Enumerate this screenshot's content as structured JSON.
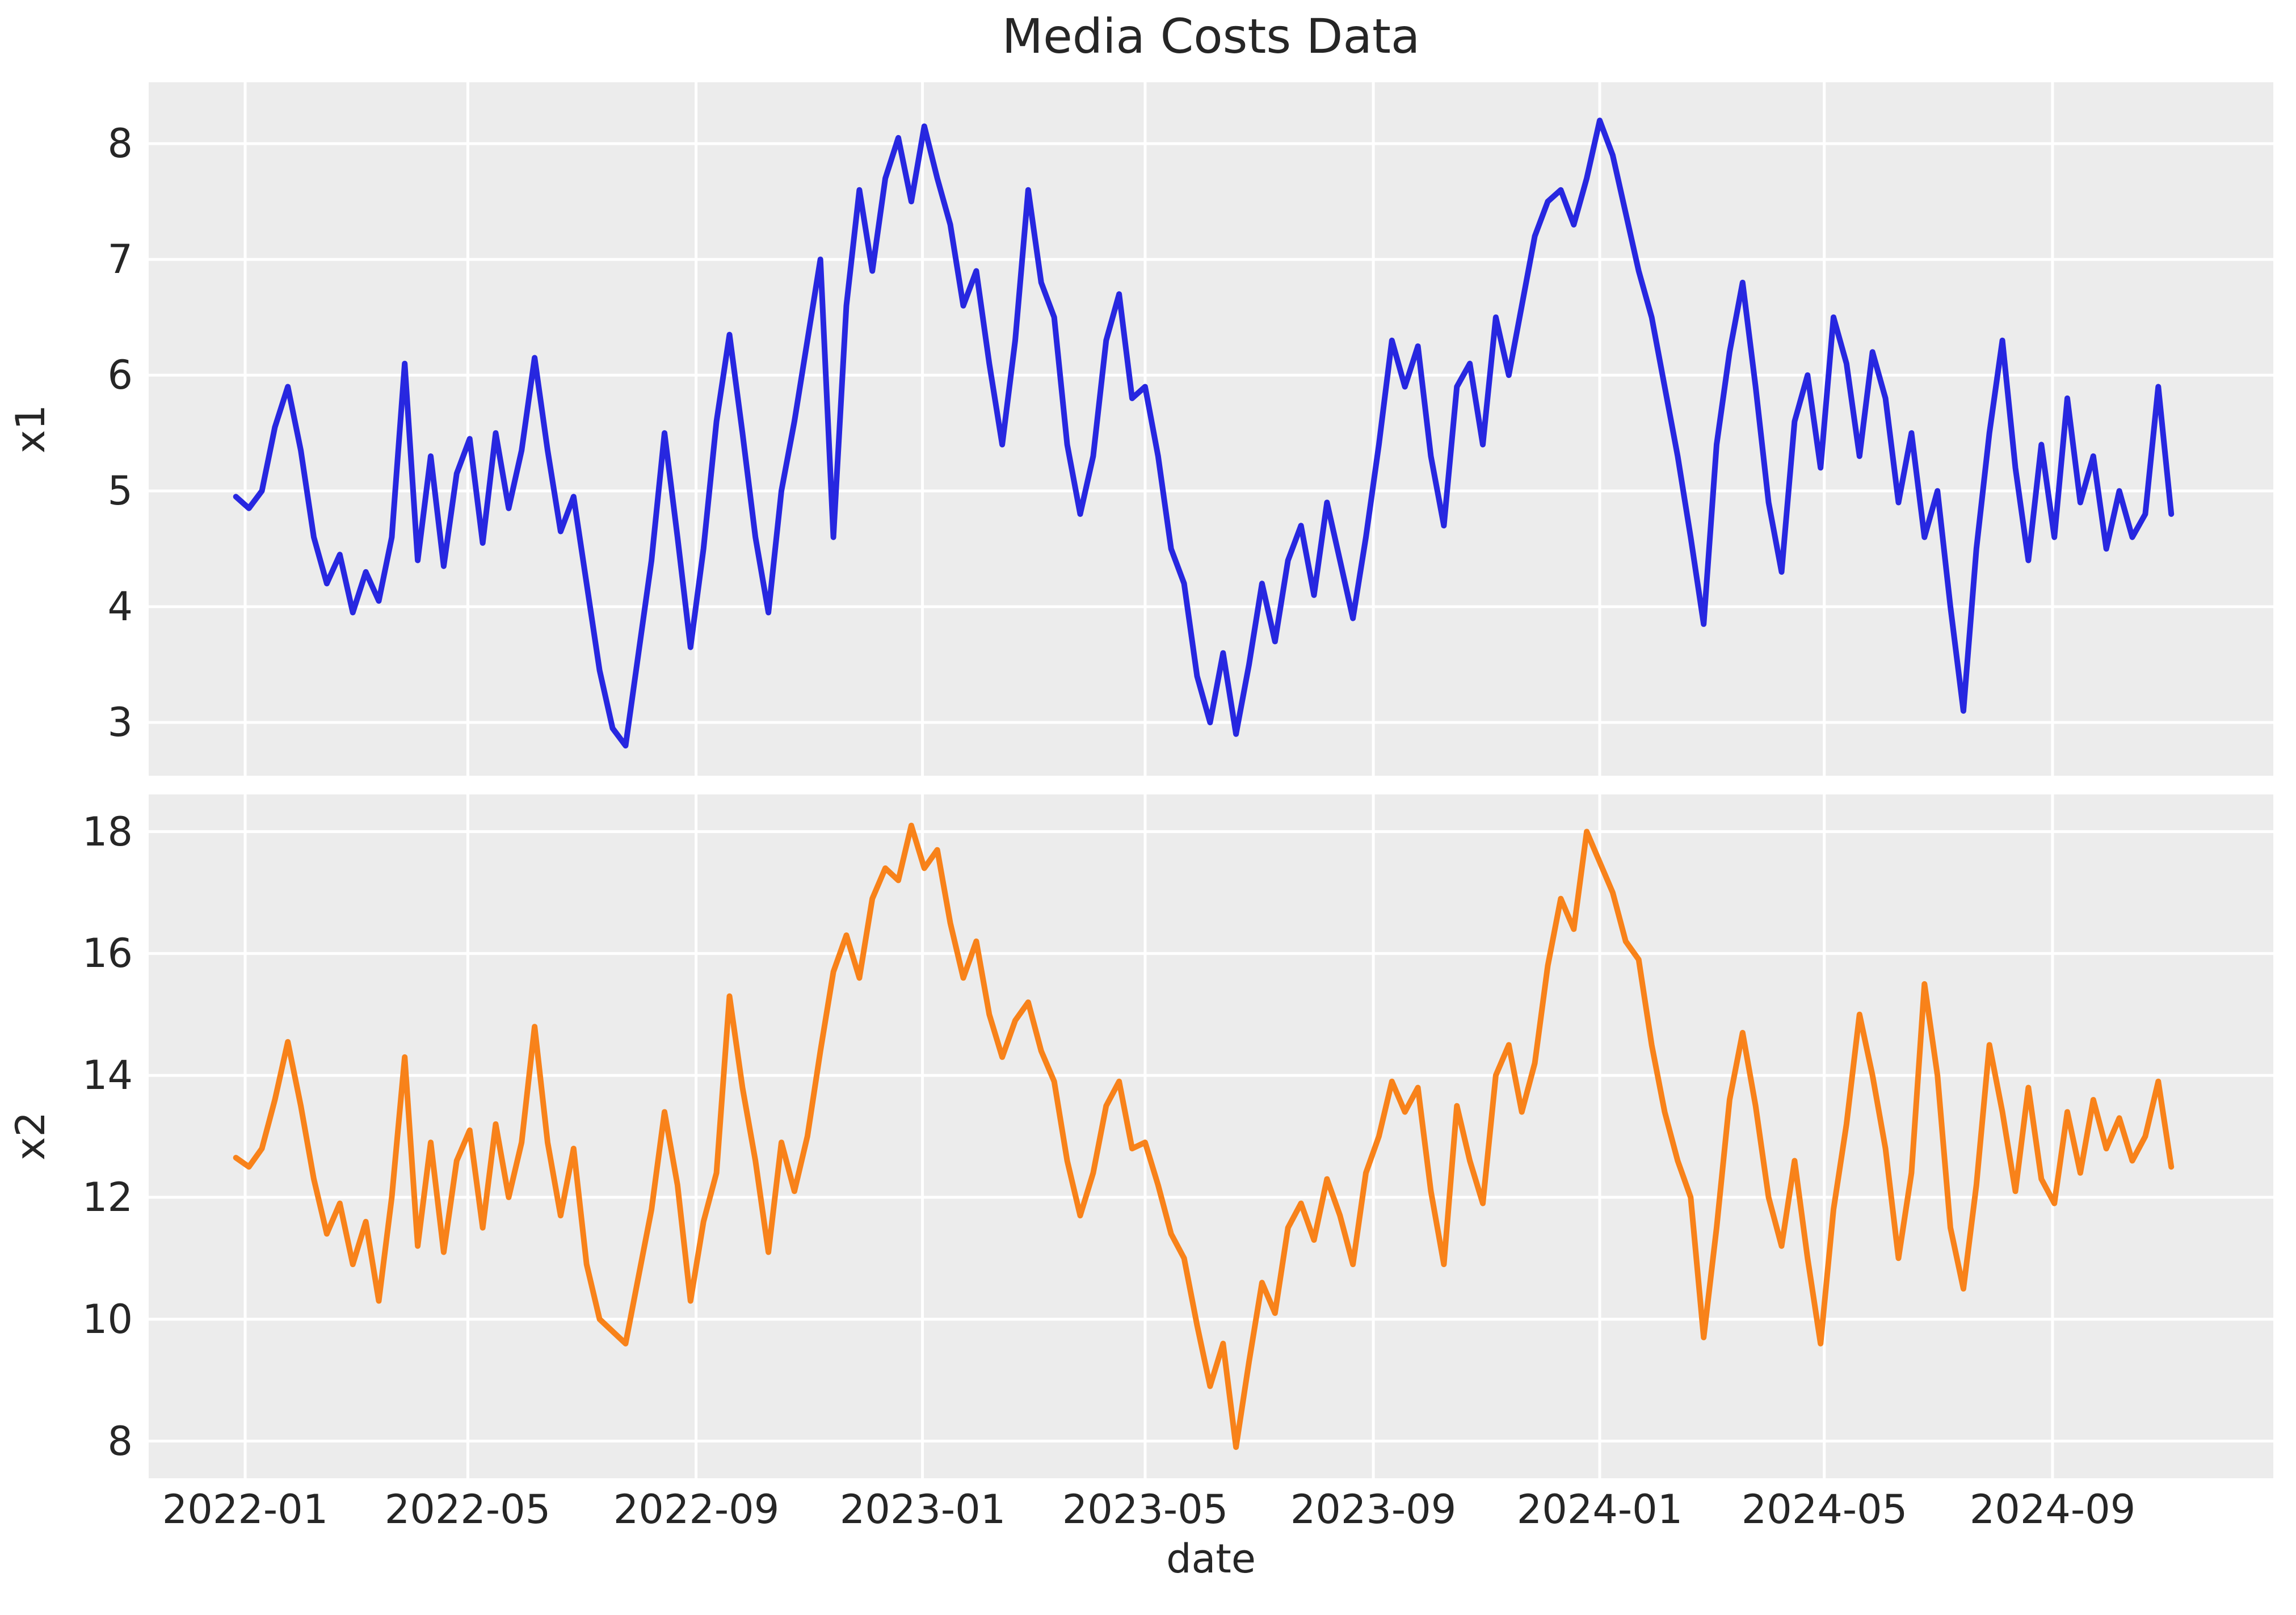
{
  "title": "Media Costs Data",
  "chart_data": {
    "type": "line",
    "title": "Media Costs Data",
    "xlabel": "date",
    "grid": true,
    "legend": "none",
    "background": "#ececec",
    "grid_color": "#ffffff",
    "text_color": "#262626",
    "x_tick_labels": [
      "2022-01",
      "2022-05",
      "2022-09",
      "2023-01",
      "2023-05",
      "2023-09",
      "2024-01",
      "2024-05",
      "2024-09"
    ],
    "x_tick_dates": [
      "2022-01-01",
      "2022-05-01",
      "2022-09-01",
      "2023-01-01",
      "2023-05-01",
      "2023-09-01",
      "2024-01-01",
      "2024-05-01",
      "2024-09-01"
    ],
    "xlim": [
      "2021-11-10",
      "2024-12-29"
    ],
    "x_start": "2021-12-27",
    "x_step_days": 7,
    "subplots": [
      {
        "ylabel": "x1",
        "yticks": [
          8,
          7,
          6,
          5,
          4,
          3
        ],
        "ylim": [
          2.54,
          8.53
        ],
        "color": "#2727e0"
      },
      {
        "ylabel": "x2",
        "yticks": [
          18,
          16,
          14,
          12,
          10,
          8
        ],
        "ylim": [
          7.39,
          18.61
        ],
        "color": "#f8821a"
      }
    ],
    "series": [
      {
        "name": "x1",
        "subplot": 0,
        "values": [
          4.95,
          4.85,
          5.0,
          5.55,
          5.9,
          5.35,
          4.6,
          4.2,
          4.45,
          3.95,
          4.3,
          4.05,
          4.6,
          6.1,
          4.4,
          5.3,
          4.35,
          5.15,
          5.45,
          4.55,
          5.5,
          4.85,
          5.35,
          6.15,
          5.35,
          4.65,
          4.95,
          4.2,
          3.45,
          2.95,
          2.8,
          3.6,
          4.4,
          5.5,
          4.6,
          3.65,
          4.5,
          5.6,
          6.35,
          5.5,
          4.6,
          3.95,
          5.0,
          5.6,
          6.3,
          7.0,
          4.6,
          6.6,
          7.6,
          6.9,
          7.7,
          8.05,
          7.5,
          8.15,
          7.7,
          7.3,
          6.6,
          6.9,
          6.1,
          5.4,
          6.3,
          7.6,
          6.8,
          6.5,
          5.4,
          4.8,
          5.3,
          6.3,
          6.7,
          5.8,
          5.9,
          5.3,
          4.5,
          4.2,
          3.4,
          3.0,
          3.6,
          2.9,
          3.5,
          4.2,
          3.7,
          4.4,
          4.7,
          4.1,
          4.9,
          4.4,
          3.9,
          4.6,
          5.4,
          6.3,
          5.9,
          6.25,
          5.3,
          4.7,
          5.9,
          6.1,
          5.4,
          6.5,
          6.0,
          6.6,
          7.2,
          7.5,
          7.6,
          7.3,
          7.7,
          8.2,
          7.9,
          7.4,
          6.9,
          6.5,
          5.9,
          5.3,
          4.6,
          3.85,
          5.4,
          6.2,
          6.8,
          5.9,
          4.9,
          4.3,
          5.6,
          6.0,
          5.2,
          6.5,
          6.1,
          5.3,
          6.2,
          5.8,
          4.9,
          5.5,
          4.6,
          5.0,
          4.0,
          3.1,
          4.5,
          5.5,
          6.3,
          5.2,
          4.4,
          5.4,
          4.6,
          5.8,
          4.9,
          5.3,
          4.5,
          5.0,
          4.6,
          4.8,
          5.9,
          4.8
        ]
      },
      {
        "name": "x2",
        "subplot": 1,
        "values": [
          12.65,
          12.5,
          12.8,
          13.6,
          14.55,
          13.5,
          12.3,
          11.4,
          11.9,
          10.9,
          11.6,
          10.3,
          12.0,
          14.3,
          11.2,
          12.9,
          11.1,
          12.6,
          13.1,
          11.5,
          13.2,
          12.0,
          12.9,
          14.8,
          12.9,
          11.7,
          12.8,
          10.9,
          10.0,
          9.8,
          9.6,
          10.7,
          11.8,
          13.4,
          12.2,
          10.3,
          11.6,
          12.4,
          15.3,
          13.8,
          12.6,
          11.1,
          12.9,
          12.1,
          13.0,
          14.4,
          15.7,
          16.3,
          15.6,
          16.9,
          17.4,
          17.2,
          18.1,
          17.4,
          17.7,
          16.5,
          15.6,
          16.2,
          15.0,
          14.3,
          14.9,
          15.2,
          14.4,
          13.9,
          12.6,
          11.7,
          12.4,
          13.5,
          13.9,
          12.8,
          12.9,
          12.2,
          11.4,
          11.0,
          9.9,
          8.9,
          9.6,
          7.9,
          9.3,
          10.6,
          10.1,
          11.5,
          11.9,
          11.3,
          12.3,
          11.7,
          10.9,
          12.4,
          13.0,
          13.9,
          13.4,
          13.8,
          12.1,
          10.9,
          13.5,
          12.6,
          11.9,
          14.0,
          14.5,
          13.4,
          14.2,
          15.8,
          16.9,
          16.4,
          18.0,
          17.5,
          17.0,
          16.2,
          15.9,
          14.5,
          13.4,
          12.6,
          12.0,
          9.7,
          11.5,
          13.6,
          14.7,
          13.5,
          12.0,
          11.2,
          12.6,
          11.0,
          9.6,
          11.8,
          13.2,
          15.0,
          14.0,
          12.8,
          11.0,
          12.4,
          15.5,
          14.0,
          11.5,
          10.5,
          12.2,
          14.5,
          13.4,
          12.1,
          13.8,
          12.3,
          11.9,
          13.4,
          12.4,
          13.6,
          12.8,
          13.3,
          12.6,
          13.0,
          13.9,
          12.5
        ]
      }
    ]
  }
}
